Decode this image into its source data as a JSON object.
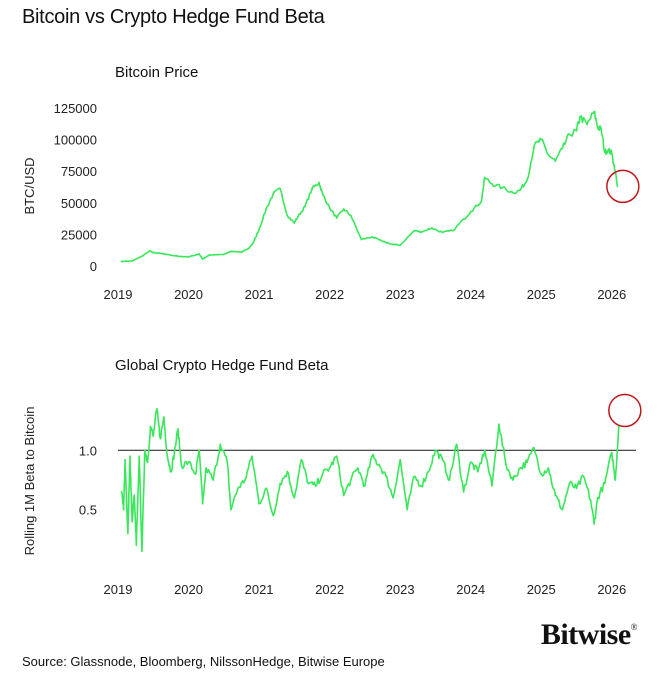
{
  "title": "Bitcoin vs Crypto Hedge Fund Beta",
  "source": "Source: Glassnode, Bloomberg, NilssonHedge, Bitwise Europe",
  "logo": "Bitwise",
  "colors": {
    "series": "#38e85a",
    "highlight": "#c0161a",
    "reference": "#333333"
  },
  "chart_data": [
    {
      "type": "line",
      "title": "Bitcoin Price",
      "ylabel": "BTC/USD",
      "xlim": [
        2019,
        2026.4
      ],
      "ylim": [
        0,
        125000
      ],
      "xticks": [
        2019,
        2020,
        2021,
        2022,
        2023,
        2024,
        2025,
        2026
      ],
      "xtick_labels": [
        "2019",
        "2020",
        "2021",
        "2022",
        "2023",
        "2024",
        "2025",
        "2026"
      ],
      "yticks": [
        0,
        25000,
        50000,
        75000,
        100000,
        125000
      ],
      "ytick_labels": [
        "0",
        "25000",
        "50000",
        "75000",
        "100000",
        "125000"
      ],
      "grid": false,
      "annotation": {
        "shape": "circle",
        "x": 2026.1,
        "y": 63000
      },
      "x": [
        2019.05,
        2019.2,
        2019.35,
        2019.45,
        2019.5,
        2019.6,
        2019.75,
        2019.9,
        2020.0,
        2020.15,
        2020.2,
        2020.3,
        2020.5,
        2020.6,
        2020.75,
        2020.85,
        2020.92,
        2021.0,
        2021.1,
        2021.2,
        2021.3,
        2021.4,
        2021.5,
        2021.55,
        2021.65,
        2021.75,
        2021.85,
        2021.9,
        2022.0,
        2022.1,
        2022.2,
        2022.3,
        2022.45,
        2022.6,
        2022.75,
        2022.9,
        2023.0,
        2023.2,
        2023.3,
        2023.45,
        2023.6,
        2023.75,
        2023.9,
        2024.0,
        2024.15,
        2024.2,
        2024.3,
        2024.45,
        2024.6,
        2024.7,
        2024.8,
        2024.9,
        2025.0,
        2025.1,
        2025.2,
        2025.3,
        2025.4,
        2025.5,
        2025.55,
        2025.65,
        2025.75,
        2025.8,
        2025.85,
        2025.9,
        2025.95,
        2026.0,
        2026.05,
        2026.08
      ],
      "y": [
        3600,
        4000,
        8000,
        12000,
        10500,
        10000,
        8500,
        7500,
        7200,
        9500,
        5500,
        8800,
        9200,
        11500,
        11000,
        13800,
        18500,
        29000,
        45000,
        57000,
        61000,
        40000,
        34000,
        39000,
        47000,
        61000,
        66000,
        57000,
        46000,
        38000,
        45000,
        40000,
        21000,
        23000,
        19500,
        17000,
        16500,
        28000,
        27000,
        30000,
        26500,
        28000,
        37000,
        43000,
        51000,
        70000,
        65000,
        62000,
        58000,
        60000,
        68000,
        95000,
        100000,
        88000,
        83000,
        93000,
        104000,
        107000,
        118000,
        112000,
        122000,
        110000,
        108000,
        90000,
        92000,
        89000,
        75000,
        63000
      ]
    },
    {
      "type": "line",
      "title": "Global Crypto Hedge Fund Beta",
      "ylabel": "Rolling 1M Beta to Bitcoin",
      "xlim": [
        2019,
        2026.4
      ],
      "ylim": [
        0.1,
        1.45
      ],
      "xticks": [
        2019,
        2020,
        2021,
        2022,
        2023,
        2024,
        2025,
        2026
      ],
      "xtick_labels": [
        "2019",
        "2020",
        "2021",
        "2022",
        "2023",
        "2024",
        "2025",
        "2026"
      ],
      "yticks": [
        0.5,
        1.0
      ],
      "ytick_labels": [
        "0.5",
        "1.0"
      ],
      "reference_line": 1.0,
      "grid": false,
      "annotation": {
        "shape": "circle",
        "x": 2026.1,
        "y": 1.21
      },
      "x": [
        2019.05,
        2019.08,
        2019.1,
        2019.14,
        2019.17,
        2019.2,
        2019.23,
        2019.26,
        2019.3,
        2019.34,
        2019.38,
        2019.42,
        2019.46,
        2019.5,
        2019.55,
        2019.6,
        2019.65,
        2019.7,
        2019.75,
        2019.8,
        2019.85,
        2019.9,
        2020.0,
        2020.1,
        2020.15,
        2020.2,
        2020.25,
        2020.35,
        2020.45,
        2020.55,
        2020.6,
        2020.7,
        2020.8,
        2020.9,
        2021.0,
        2021.1,
        2021.2,
        2021.3,
        2021.4,
        2021.5,
        2021.6,
        2021.7,
        2021.8,
        2021.9,
        2022.0,
        2022.1,
        2022.2,
        2022.3,
        2022.4,
        2022.5,
        2022.6,
        2022.7,
        2022.8,
        2022.9,
        2023.0,
        2023.1,
        2023.2,
        2023.3,
        2023.4,
        2023.5,
        2023.6,
        2023.7,
        2023.8,
        2023.9,
        2024.0,
        2024.1,
        2024.2,
        2024.3,
        2024.4,
        2024.5,
        2024.6,
        2024.7,
        2024.8,
        2024.9,
        2025.0,
        2025.1,
        2025.2,
        2025.3,
        2025.4,
        2025.5,
        2025.6,
        2025.7,
        2025.75,
        2025.8,
        2025.9,
        2026.0,
        2026.05,
        2026.1
      ],
      "y": [
        0.65,
        0.5,
        0.92,
        0.3,
        0.95,
        0.4,
        0.62,
        0.2,
        0.95,
        0.15,
        1.0,
        0.9,
        1.2,
        1.12,
        1.35,
        1.1,
        1.28,
        0.95,
        0.82,
        0.98,
        1.18,
        0.87,
        0.9,
        0.8,
        1.0,
        0.55,
        0.85,
        0.75,
        1.05,
        0.9,
        0.5,
        0.68,
        0.75,
        0.95,
        0.55,
        0.68,
        0.45,
        0.72,
        0.82,
        0.6,
        0.92,
        0.72,
        0.7,
        0.8,
        0.85,
        0.95,
        0.62,
        0.75,
        0.85,
        0.7,
        0.95,
        0.88,
        0.78,
        0.6,
        0.92,
        0.5,
        0.78,
        0.7,
        0.82,
        1.0,
        0.92,
        0.75,
        1.05,
        0.65,
        0.9,
        0.82,
        1.0,
        0.7,
        1.22,
        0.88,
        0.75,
        0.85,
        0.9,
        1.02,
        0.8,
        0.85,
        0.62,
        0.5,
        0.72,
        0.68,
        0.78,
        0.58,
        0.38,
        0.6,
        0.72,
        0.98,
        0.75,
        1.21
      ]
    }
  ]
}
